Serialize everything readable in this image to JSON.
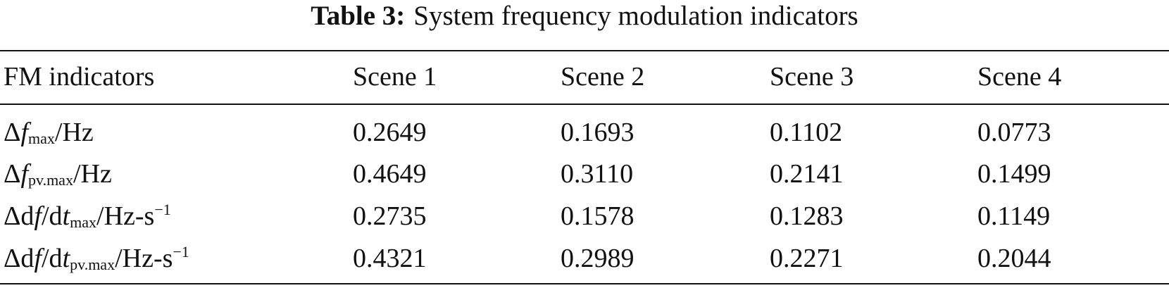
{
  "table": {
    "label": "Table 3:",
    "title": "System frequency modulation indicators",
    "header": [
      "FM indicators",
      "Scene 1",
      "Scene 2",
      "Scene 3",
      "Scene 4"
    ],
    "rows": [
      {
        "indicator": [
          {
            "text": "Δ"
          },
          {
            "text": "f",
            "style": "italic"
          },
          {
            "text": "max",
            "style": "sub"
          },
          {
            "text": "/Hz"
          }
        ],
        "values": [
          "0.2649",
          "0.1693",
          "0.1102",
          "0.0773"
        ]
      },
      {
        "indicator": [
          {
            "text": "Δ"
          },
          {
            "text": "f",
            "style": "italic"
          },
          {
            "text": "pv.max",
            "style": "sub"
          },
          {
            "text": "/Hz"
          }
        ],
        "values": [
          "0.4649",
          "0.3110",
          "0.2141",
          "0.1499"
        ]
      },
      {
        "indicator": [
          {
            "text": "Δd"
          },
          {
            "text": "f",
            "style": "italic"
          },
          {
            "text": "/d"
          },
          {
            "text": "t",
            "style": "italic"
          },
          {
            "text": "max",
            "style": "sub"
          },
          {
            "text": "/Hz-s"
          },
          {
            "text": "−1",
            "style": "sup"
          }
        ],
        "values": [
          "0.2735",
          "0.1578",
          "0.1283",
          "0.1149"
        ]
      },
      {
        "indicator": [
          {
            "text": "Δd"
          },
          {
            "text": "f",
            "style": "italic"
          },
          {
            "text": "/d"
          },
          {
            "text": "t",
            "style": "italic"
          },
          {
            "text": "pv.max",
            "style": "sub"
          },
          {
            "text": "/Hz-s"
          },
          {
            "text": "−1",
            "style": "sup"
          }
        ],
        "values": [
          "0.4321",
          "0.2989",
          "0.2271",
          "0.2044"
        ]
      }
    ]
  }
}
